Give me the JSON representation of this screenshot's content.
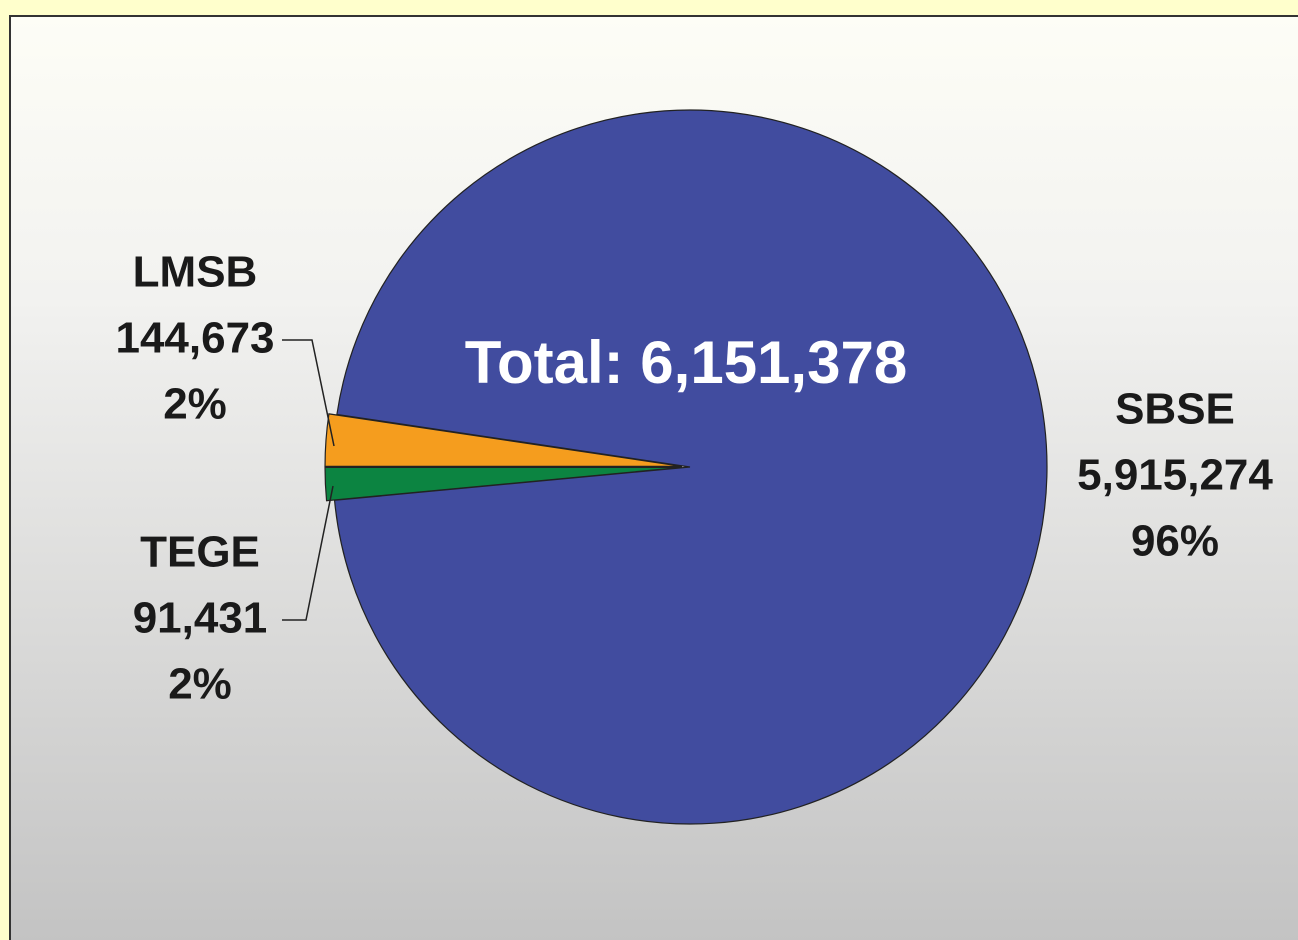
{
  "chart_data": {
    "type": "pie",
    "annotation": "Total: 6,151,378",
    "categories": [
      "LMSB",
      "TEGE",
      "SBSE"
    ],
    "values": [
      144673,
      91431,
      5915274
    ],
    "value_labels": [
      "144,673",
      "91,431",
      "5,915,274"
    ],
    "percent_labels": [
      "2%",
      "2%",
      "96%"
    ],
    "colors": [
      "#f59d1e",
      "#0c8441",
      "#414c9f"
    ]
  }
}
